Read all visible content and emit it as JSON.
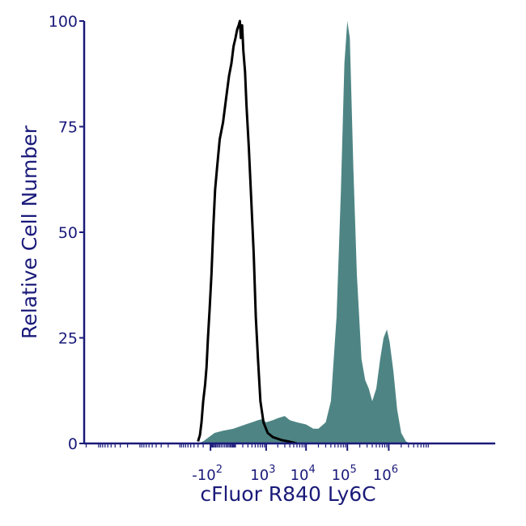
{
  "chart_data": {
    "type": "area",
    "title": "",
    "xlabel": "cFluor R840 Ly6C",
    "ylabel": "Relative Cell Number",
    "x_scale": "biexponential",
    "ylim": [
      0,
      100
    ],
    "y_ticks": [
      0,
      25,
      50,
      75,
      100
    ],
    "x_tick_labels": [
      {
        "base": "-10",
        "exp": "2",
        "x": -100
      },
      {
        "base": "10",
        "exp": "3",
        "x": 1000
      },
      {
        "base": "10",
        "exp": "4",
        "x": 10000
      },
      {
        "base": "10",
        "exp": "5",
        "x": 100000
      },
      {
        "base": "10",
        "exp": "6",
        "x": 1000000
      }
    ],
    "grid": false,
    "legend": "none",
    "colors": {
      "axis": "#1a1a7a",
      "filled": "#4e8584",
      "outline": "#000000"
    },
    "series": [
      {
        "style": "filled",
        "points": [
          [
            -300,
            0
          ],
          [
            -200,
            0.5
          ],
          [
            -120,
            1.5
          ],
          [
            -60,
            2.5
          ],
          [
            0,
            3
          ],
          [
            80,
            3.5
          ],
          [
            150,
            4
          ],
          [
            250,
            4.5
          ],
          [
            400,
            5
          ],
          [
            600,
            5.5
          ],
          [
            800,
            5.8
          ],
          [
            1000,
            5
          ],
          [
            1500,
            5.5
          ],
          [
            2000,
            6
          ],
          [
            3000,
            6.5
          ],
          [
            4000,
            5.5
          ],
          [
            6000,
            5
          ],
          [
            10000,
            4.5
          ],
          [
            15000,
            3.5
          ],
          [
            20000,
            3.5
          ],
          [
            30000,
            5
          ],
          [
            40000,
            10
          ],
          [
            55000,
            30
          ],
          [
            70000,
            60
          ],
          [
            85000,
            90
          ],
          [
            100000,
            100
          ],
          [
            115000,
            96
          ],
          [
            140000,
            65
          ],
          [
            170000,
            40
          ],
          [
            220000,
            20
          ],
          [
            270000,
            15
          ],
          [
            330000,
            13
          ],
          [
            400000,
            10
          ],
          [
            500000,
            13
          ],
          [
            620000,
            20
          ],
          [
            750000,
            25
          ],
          [
            900000,
            27
          ],
          [
            1050000,
            24
          ],
          [
            1300000,
            17
          ],
          [
            1600000,
            8
          ],
          [
            2000000,
            2.5
          ],
          [
            2600000,
            0.5
          ],
          [
            3200000,
            0
          ]
        ]
      },
      {
        "style": "outline",
        "points": [
          [
            -300,
            0.5
          ],
          [
            -260,
            2
          ],
          [
            -230,
            5
          ],
          [
            -200,
            10
          ],
          [
            -170,
            14
          ],
          [
            -150,
            18
          ],
          [
            -130,
            25
          ],
          [
            -110,
            32
          ],
          [
            -90,
            40
          ],
          [
            -70,
            52
          ],
          [
            -55,
            60
          ],
          [
            -40,
            65
          ],
          [
            -20,
            72
          ],
          [
            0,
            76
          ],
          [
            20,
            82
          ],
          [
            40,
            87
          ],
          [
            60,
            90
          ],
          [
            80,
            94
          ],
          [
            100,
            96
          ],
          [
            120,
            98
          ],
          [
            140,
            99
          ],
          [
            155,
            100
          ],
          [
            170,
            96
          ],
          [
            190,
            99
          ],
          [
            210,
            93
          ],
          [
            240,
            88
          ],
          [
            270,
            80
          ],
          [
            320,
            70
          ],
          [
            380,
            58
          ],
          [
            450,
            45
          ],
          [
            520,
            30
          ],
          [
            600,
            20
          ],
          [
            700,
            10
          ],
          [
            850,
            5
          ],
          [
            1100,
            2.5
          ],
          [
            1500,
            1.5
          ],
          [
            2500,
            0.8
          ],
          [
            4000,
            0.4
          ],
          [
            6000,
            0
          ]
        ]
      }
    ]
  }
}
